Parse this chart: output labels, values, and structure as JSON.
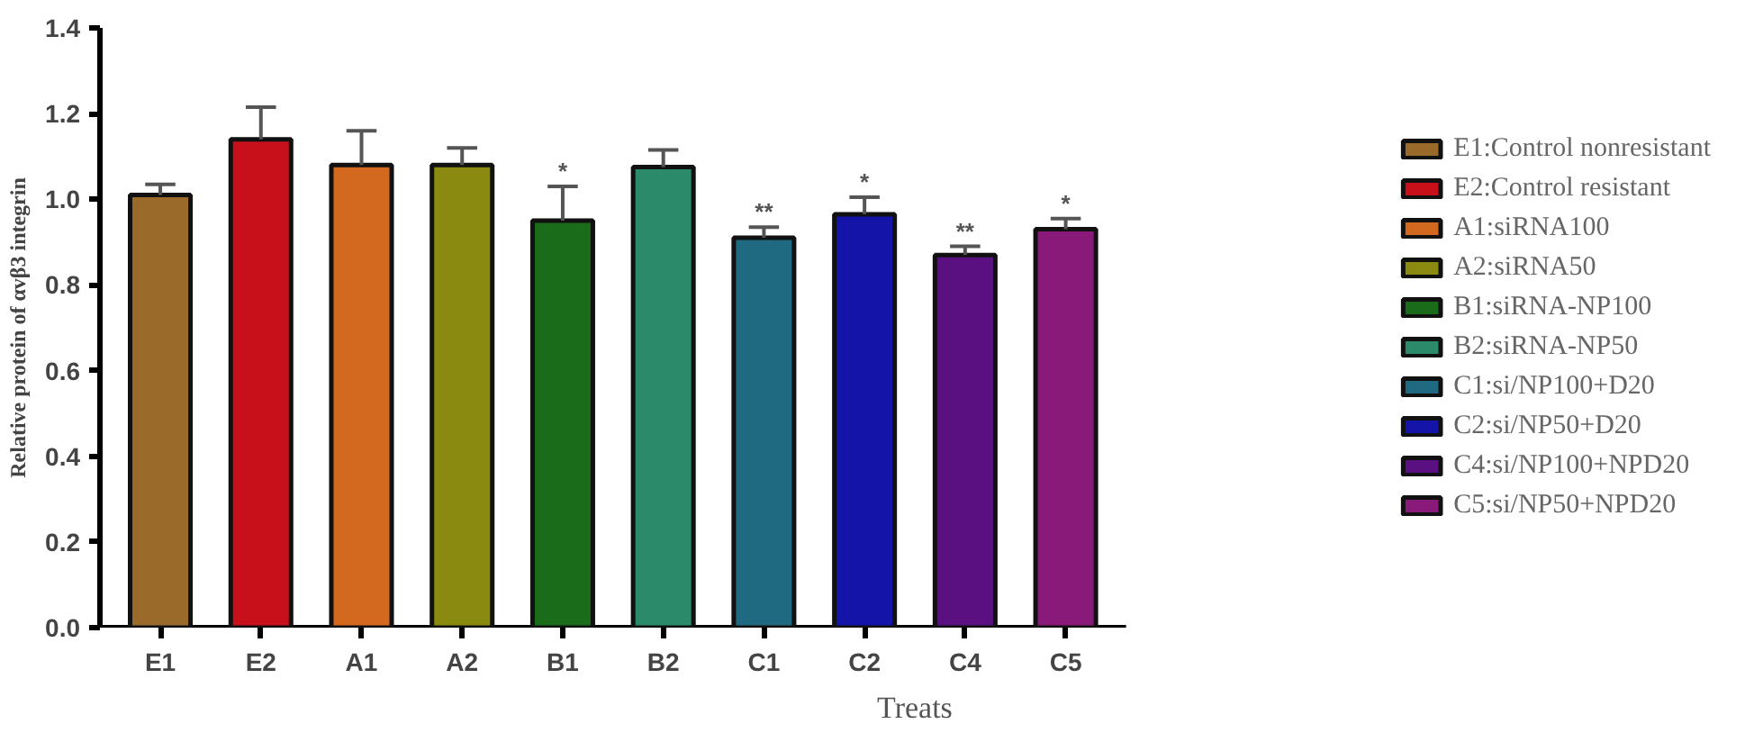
{
  "chart_data": {
    "type": "bar",
    "categories": [
      "E1",
      "E2",
      "A1",
      "A2",
      "B1",
      "B2",
      "C1",
      "C2",
      "C4",
      "C5"
    ],
    "series": [
      {
        "name": "E1:Control nonresistant",
        "color": "#9a6a2a",
        "values": [
          1.01,
          null,
          null,
          null,
          null,
          null,
          null,
          null,
          null,
          null
        ],
        "errors": [
          [
            1.01,
            1.035
          ],
          null,
          null,
          null,
          null,
          null,
          null,
          null,
          null,
          null
        ]
      },
      {
        "name": "E2:Control resistant",
        "color": "#c8101a",
        "values": [
          null,
          1.14,
          null,
          null,
          null,
          null,
          null,
          null,
          null,
          null
        ],
        "errors": [
          null,
          [
            1.14,
            1.215
          ],
          null,
          null,
          null,
          null,
          null,
          null,
          null,
          null
        ]
      },
      {
        "name": "A1:siRNA100",
        "color": "#d2691e",
        "values": [
          null,
          null,
          1.08,
          null,
          null,
          null,
          null,
          null,
          null,
          null
        ],
        "errors": [
          null,
          null,
          [
            1.08,
            1.16
          ],
          null,
          null,
          null,
          null,
          null,
          null,
          null
        ]
      },
      {
        "name": "A2:siRNA50",
        "color": "#8a8a10",
        "values": [
          null,
          null,
          null,
          1.08,
          null,
          null,
          null,
          null,
          null,
          null
        ],
        "errors": [
          null,
          null,
          null,
          [
            1.08,
            1.12
          ],
          null,
          null,
          null,
          null,
          null,
          null
        ]
      },
      {
        "name": "B1:siRNA-NP100",
        "color": "#1a6b1a",
        "values": [
          null,
          null,
          null,
          null,
          0.95,
          null,
          null,
          null,
          null,
          null
        ],
        "errors": [
          null,
          null,
          null,
          null,
          [
            0.95,
            1.03
          ],
          null,
          null,
          null,
          null,
          null
        ]
      },
      {
        "name": "B2:siRNA-NP50",
        "color": "#2a8a6a",
        "values": [
          null,
          null,
          null,
          null,
          null,
          1.075,
          null,
          null,
          null,
          null
        ],
        "errors": [
          null,
          null,
          null,
          null,
          null,
          [
            1.075,
            1.115
          ],
          null,
          null,
          null,
          null
        ]
      },
      {
        "name": "C1:si/NP100+D20",
        "color": "#1f6a80",
        "values": [
          null,
          null,
          null,
          null,
          null,
          null,
          0.91,
          null,
          null,
          null
        ],
        "errors": [
          null,
          null,
          null,
          null,
          null,
          null,
          [
            0.91,
            0.935
          ],
          null,
          null,
          null
        ]
      },
      {
        "name": "C2:si/NP50+D20",
        "color": "#1414a8",
        "values": [
          null,
          null,
          null,
          null,
          null,
          null,
          null,
          0.965,
          null,
          null
        ],
        "errors": [
          null,
          null,
          null,
          null,
          null,
          null,
          null,
          [
            0.965,
            1.005
          ],
          null,
          null
        ]
      },
      {
        "name": "C4:si/NP100+NPD20",
        "color": "#5a1080",
        "values": [
          null,
          null,
          null,
          null,
          null,
          null,
          null,
          null,
          0.87,
          null
        ],
        "errors": [
          null,
          null,
          null,
          null,
          null,
          null,
          null,
          null,
          [
            0.87,
            0.89
          ],
          null
        ]
      },
      {
        "name": "C5:si/NP50+NPD20",
        "color": "#8a1a7a",
        "values": [
          null,
          null,
          null,
          null,
          null,
          null,
          null,
          null,
          null,
          0.93
        ],
        "errors": [
          null,
          null,
          null,
          null,
          null,
          null,
          null,
          null,
          null,
          [
            0.93,
            0.955
          ]
        ]
      }
    ],
    "xlabel": "Treats",
    "ylabel": "Relative protein of αvβ3 integrin",
    "ylim": [
      0,
      1.4
    ],
    "yticks": [
      {
        "value": 0,
        "label": "0.0"
      },
      {
        "value": 0.2,
        "label": "0.2"
      },
      {
        "value": 0.4,
        "label": "0.4"
      },
      {
        "value": 0.6,
        "label": "0.6"
      },
      {
        "value": 0.8,
        "label": "0.8"
      },
      {
        "value": 1.0,
        "label": "1.0"
      },
      {
        "value": 1.2,
        "label": "1.2"
      },
      {
        "value": 1.4,
        "label": "1.4"
      }
    ],
    "annotations": [
      {
        "text": "*",
        "x": "B1",
        "y": 1.03
      },
      {
        "text": "**",
        "x": "C1",
        "y": 0.935
      },
      {
        "text": "*",
        "x": "C2",
        "y": 1.005
      },
      {
        "text": "**",
        "x": "C4",
        "y": 0.89
      },
      {
        "text": "*",
        "x": "C5",
        "y": 0.955
      }
    ],
    "grid": false,
    "legend": "right"
  }
}
